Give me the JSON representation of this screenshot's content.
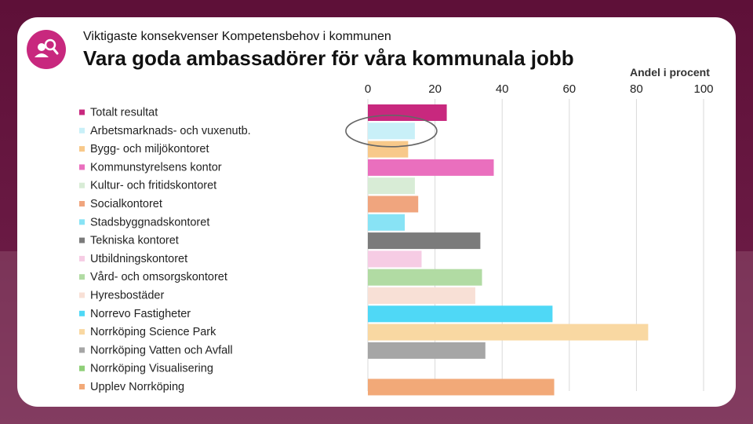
{
  "header": {
    "subtitle": "Viktigaste konsekvenser Kompetensbehov i kommunen",
    "title": "Vara goda ambassadörer för våra kommunala jobb",
    "unit_label": "Andel i procent"
  },
  "logo": {
    "icon": "people-search-icon",
    "color": "#c8287e"
  },
  "highlight": {
    "category": "Arbetsmarknads- och vuxenutb.",
    "shape": "ellipse"
  },
  "chart_data": {
    "type": "bar",
    "orientation": "horizontal",
    "xlim": [
      0,
      100
    ],
    "xticks": [
      0,
      20,
      40,
      60,
      80,
      100
    ],
    "xtick_labels": [
      "0",
      "20",
      "40",
      "60",
      "80",
      "100"
    ],
    "xaxis_position": "top",
    "grid": true,
    "legend_position": "left",
    "series": [
      {
        "name": "Totalt resultat",
        "value": 23.5,
        "color": "#c8287e"
      },
      {
        "name": "Arbetsmarknads- och vuxenutb.",
        "value": 14,
        "color": "#c9f0f8"
      },
      {
        "name": "Bygg- och miljökontoret",
        "value": 12,
        "color": "#f8c98a"
      },
      {
        "name": "Kommunstyrelsens kontor",
        "value": 37.5,
        "color": "#ea6fbe"
      },
      {
        "name": "Kultur- och fritidskontoret",
        "value": 14,
        "color": "#d8ecd6"
      },
      {
        "name": "Socialkontoret",
        "value": 15,
        "color": "#f0a57e"
      },
      {
        "name": "Stadsbyggnadskontoret",
        "value": 11,
        "color": "#88e3f5"
      },
      {
        "name": "Tekniska kontoret",
        "value": 33.5,
        "color": "#7b7b7b"
      },
      {
        "name": "Utbildningskontoret",
        "value": 16,
        "color": "#f6cce4"
      },
      {
        "name": "Vård- och omsorgskontoret",
        "value": 34,
        "color": "#b1dba3"
      },
      {
        "name": "Hyresbostäder",
        "value": 32,
        "color": "#f8e0d6"
      },
      {
        "name": "Norrevo Fastigheter",
        "value": 55,
        "color": "#4fd8f6"
      },
      {
        "name": "Norrköping Science Park",
        "value": 83.5,
        "color": "#f9d8a2"
      },
      {
        "name": "Norrköping Vatten och Avfall",
        "value": 35,
        "color": "#a6a6a6"
      },
      {
        "name": "Norrköping Visualisering",
        "value": 0,
        "color": "#8fcf78"
      },
      {
        "name": "Upplev Norrköping",
        "value": 55.5,
        "color": "#f2a978"
      }
    ]
  }
}
